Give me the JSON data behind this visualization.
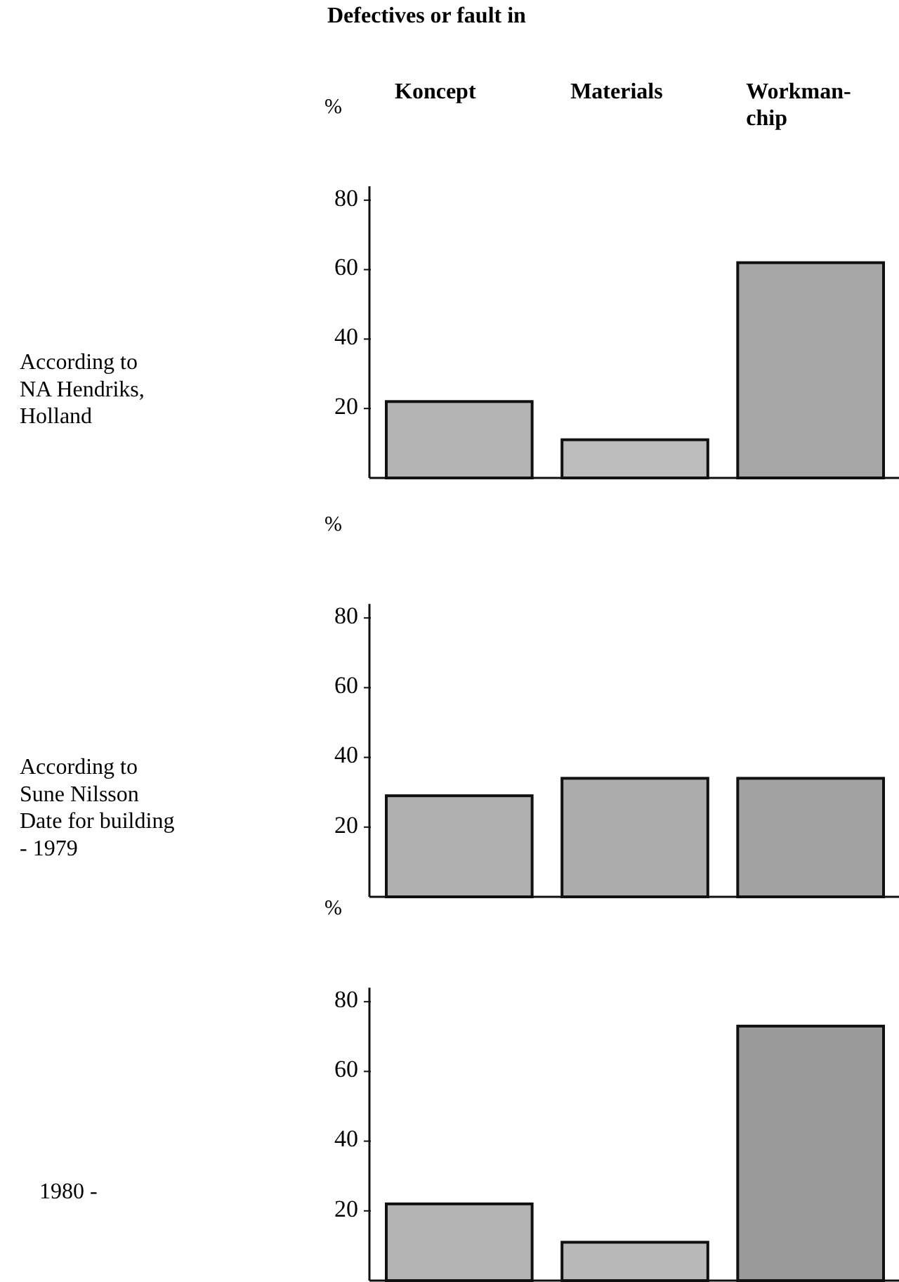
{
  "chart_data": [
    {
      "type": "bar",
      "title": "Defectives or fault in",
      "annotations": [
        "According to\nNA Hendriks,\nHolland"
      ],
      "ylabel": "%",
      "categories": [
        "Koncept",
        "Materials",
        "Workman-\nchip"
      ],
      "values": [
        22,
        11,
        62
      ],
      "colors": [
        "#b4b4b4",
        "#bcbcbc",
        "#a6a6a6"
      ],
      "ylim": [
        0,
        84
      ],
      "yticks": [
        20,
        40,
        60,
        80
      ]
    },
    {
      "type": "bar",
      "annotations": [
        "According to\nSune Nilsson\nDate for building\n- 1979"
      ],
      "ylabel": "%",
      "categories": [
        null,
        null,
        null
      ],
      "values": [
        29,
        34,
        34
      ],
      "colors": [
        "#b0b0b0",
        "#acacac",
        "#a2a2a2"
      ],
      "ylim": [
        0,
        84
      ],
      "yticks": [
        20,
        40,
        60,
        80
      ]
    },
    {
      "type": "bar",
      "annotations": [
        "1980 -"
      ],
      "ylabel": "%",
      "categories": [
        null,
        null,
        null
      ],
      "values": [
        22,
        11,
        73
      ],
      "colors": [
        "#b4b4b4",
        "#b8b8b8",
        "#9a9a9a"
      ],
      "ylim": [
        0,
        84
      ],
      "yticks": [
        20,
        40,
        60,
        80
      ]
    }
  ]
}
